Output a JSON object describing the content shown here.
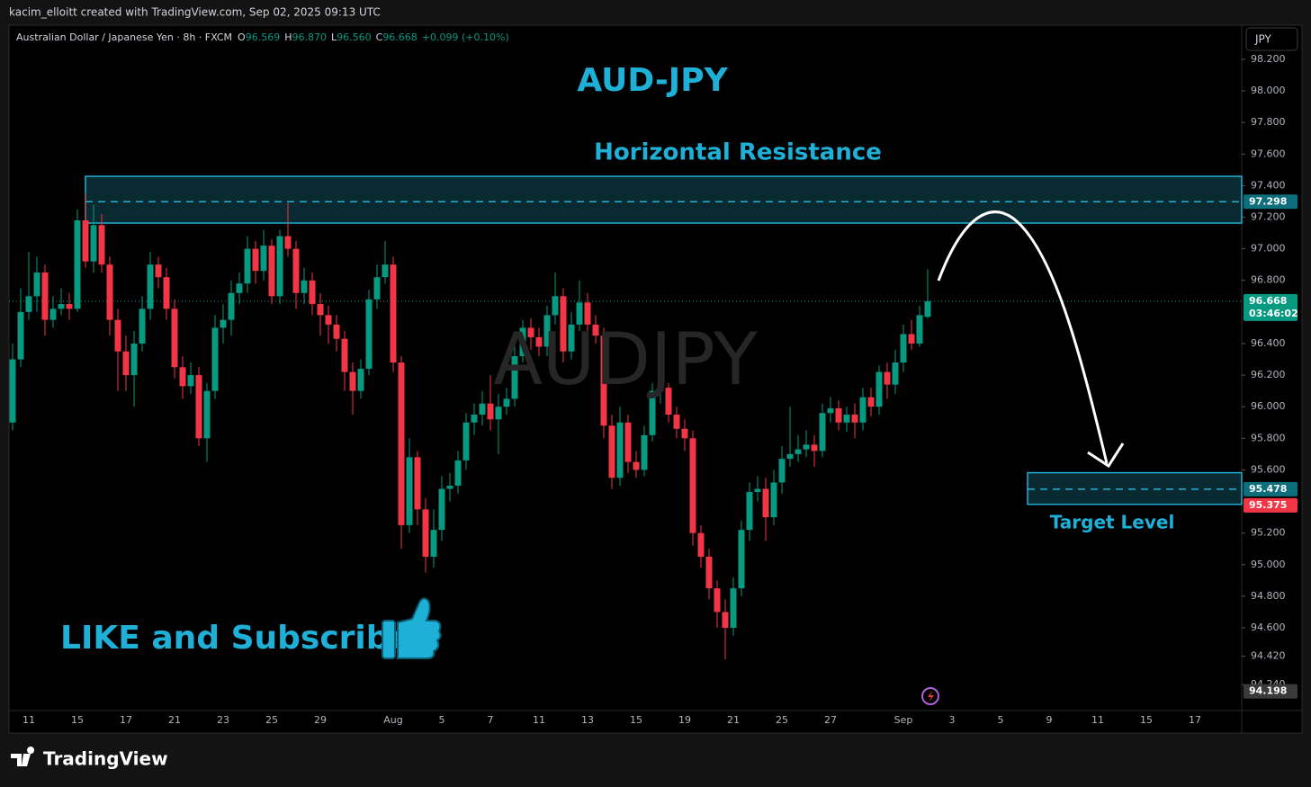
{
  "header": {
    "attribution": "kacim_elloitt created with TradingView.com, Sep 02, 2025 09:13 UTC",
    "logo": "TradingView"
  },
  "chart_data": {
    "type": "candlestick",
    "symbol": "Australian Dollar / Japanese Yen · 8h · FXCM",
    "ohlc_readout": {
      "o_label": "O",
      "o": "96.569",
      "h_label": "H",
      "h": "96.870",
      "l_label": "L",
      "l": "96.560",
      "c_label": "C",
      "c": "96.668",
      "change": "+0.099 (+0.10%)"
    },
    "currency": "JPY",
    "title": "AUD-JPY",
    "watermark": "AUDJPY",
    "annotations": {
      "resistance": "Horizontal Resistance",
      "target": "Target Level",
      "cta": "LIKE and Subscribe"
    },
    "categories": [
      null,
      null,
      "11",
      null,
      null,
      null,
      null,
      null,
      "15",
      null,
      null,
      null,
      null,
      null,
      "17",
      null,
      null,
      null,
      null,
      null,
      "21",
      null,
      null,
      null,
      null,
      null,
      "23",
      null,
      null,
      null,
      null,
      null,
      "25",
      null,
      null,
      null,
      null,
      null,
      "29",
      null,
      null,
      null,
      null,
      null,
      null,
      null,
      null,
      "Aug",
      null,
      null,
      null,
      null,
      null,
      "5",
      null,
      null,
      null,
      null,
      null,
      "7",
      null,
      null,
      null,
      null,
      null,
      "11",
      null,
      null,
      null,
      null,
      null,
      "13",
      null,
      null,
      null,
      null,
      null,
      "15",
      null,
      null,
      null,
      null,
      null,
      "19",
      null,
      null,
      null,
      null,
      null,
      "21",
      null,
      null,
      null,
      null,
      null,
      "25",
      null,
      null,
      null,
      null,
      null,
      "27",
      null,
      null,
      null,
      null,
      null,
      null,
      null,
      null,
      "Sep",
      null,
      null,
      null,
      null,
      null,
      "3",
      null,
      null,
      null,
      null,
      null,
      "5",
      null,
      null,
      null,
      null,
      null,
      "9",
      null,
      null,
      null,
      null,
      null,
      "11",
      null,
      null,
      null,
      null,
      null,
      "15",
      null,
      null,
      null,
      null,
      null,
      "17",
      null
    ],
    "open": [
      95.9,
      96.3,
      96.6,
      96.7,
      96.85,
      96.55,
      96.62,
      96.65,
      96.62,
      97.18,
      96.92,
      97.15,
      96.9,
      96.55,
      96.35,
      96.2,
      96.4,
      96.62,
      96.9,
      96.82,
      96.62,
      96.25,
      96.13,
      96.2,
      95.8,
      96.1,
      96.5,
      96.55,
      96.72,
      96.78,
      97.0,
      96.86,
      97.02,
      96.7,
      97.08,
      97.0,
      96.72,
      96.8,
      96.65,
      96.58,
      96.52,
      96.43,
      96.22,
      96.1,
      96.24,
      96.68,
      96.82,
      96.9,
      96.28,
      95.25,
      95.68,
      95.35,
      95.05,
      95.22,
      95.48,
      95.5,
      95.66,
      95.9,
      95.95,
      96.02,
      95.92,
      96.0,
      96.05,
      96.32,
      96.5,
      96.44,
      96.38,
      96.58,
      96.7,
      96.35,
      96.52,
      96.66,
      96.52,
      96.45,
      95.88,
      95.55,
      95.9,
      95.65,
      95.6,
      95.82,
      96.1,
      96.12,
      95.95,
      95.86,
      95.8,
      95.2,
      95.05,
      94.85,
      94.7,
      94.6,
      94.85,
      95.22,
      95.46,
      95.48,
      95.3,
      95.52,
      95.67,
      95.7,
      95.73,
      95.76,
      95.72,
      95.96,
      95.99,
      95.9,
      95.95,
      95.9,
      96.06,
      96.0,
      96.22,
      96.14,
      96.28,
      96.46,
      96.4,
      96.569,
      null,
      null,
      null,
      null,
      null,
      null,
      null,
      null,
      null,
      null,
      null,
      null,
      null,
      null,
      null,
      null,
      null,
      null,
      null,
      null,
      null,
      null,
      null,
      null,
      null,
      null,
      null,
      null,
      null,
      null,
      null,
      null,
      null,
      null
    ],
    "high": [
      96.4,
      96.75,
      96.98,
      96.95,
      96.9,
      96.7,
      96.75,
      96.72,
      97.25,
      97.35,
      97.28,
      97.22,
      96.95,
      96.62,
      96.45,
      96.48,
      96.7,
      96.98,
      96.95,
      96.88,
      96.68,
      96.32,
      96.28,
      96.25,
      96.15,
      96.58,
      96.65,
      96.8,
      96.85,
      97.08,
      97.05,
      97.12,
      97.06,
      97.12,
      97.29,
      97.05,
      96.88,
      96.85,
      96.72,
      96.64,
      96.58,
      96.48,
      96.28,
      96.3,
      96.74,
      96.9,
      97.05,
      96.95,
      96.32,
      95.8,
      95.72,
      95.42,
      95.35,
      95.56,
      95.58,
      95.72,
      95.96,
      96.02,
      96.1,
      96.2,
      96.08,
      96.12,
      96.4,
      96.55,
      96.56,
      96.5,
      96.64,
      96.85,
      96.75,
      96.6,
      96.8,
      96.72,
      96.58,
      96.5,
      95.95,
      96.0,
      95.95,
      95.72,
      95.88,
      96.15,
      96.18,
      96.15,
      96.0,
      95.92,
      95.85,
      95.25,
      95.1,
      94.9,
      94.78,
      94.92,
      95.28,
      95.52,
      95.56,
      95.55,
      95.6,
      95.75,
      96.0,
      95.82,
      95.85,
      95.82,
      96.02,
      96.06,
      96.04,
      96.0,
      96.02,
      96.12,
      96.12,
      96.26,
      96.28,
      96.36,
      96.52,
      96.55,
      96.64,
      96.87,
      null,
      null,
      null,
      null,
      null,
      null,
      null,
      null,
      null,
      null,
      null,
      null,
      null,
      null,
      null,
      null,
      null,
      null,
      null,
      null,
      null,
      null,
      null,
      null,
      null,
      null,
      null,
      null,
      null,
      null,
      null,
      null,
      null,
      null
    ],
    "low": [
      95.85,
      96.25,
      96.55,
      96.6,
      96.45,
      96.5,
      96.58,
      96.55,
      96.6,
      96.88,
      96.85,
      96.85,
      96.45,
      96.1,
      96.1,
      96.0,
      96.35,
      96.55,
      96.75,
      96.55,
      96.18,
      96.05,
      96.08,
      95.75,
      95.65,
      96.05,
      96.4,
      96.45,
      96.65,
      96.72,
      96.78,
      96.8,
      96.65,
      96.65,
      96.95,
      96.62,
      96.65,
      96.58,
      96.45,
      96.4,
      96.35,
      96.1,
      95.95,
      96.05,
      96.2,
      96.62,
      96.78,
      96.22,
      95.1,
      95.2,
      95.25,
      94.95,
      94.98,
      95.15,
      95.4,
      95.45,
      95.6,
      95.82,
      95.88,
      95.85,
      95.7,
      95.95,
      96.0,
      96.28,
      96.36,
      96.32,
      96.32,
      96.52,
      96.28,
      96.3,
      96.48,
      96.45,
      96.4,
      95.8,
      95.48,
      95.5,
      95.58,
      95.55,
      95.56,
      95.78,
      96.02,
      95.9,
      95.8,
      95.72,
      95.12,
      94.98,
      94.78,
      94.6,
      94.4,
      94.55,
      94.8,
      95.15,
      95.4,
      95.15,
      95.25,
      95.45,
      95.62,
      95.65,
      95.68,
      95.62,
      95.68,
      95.9,
      95.85,
      95.84,
      95.8,
      95.85,
      95.94,
      95.95,
      96.05,
      96.08,
      96.22,
      96.36,
      96.38,
      96.56,
      null,
      null,
      null,
      null,
      null,
      null,
      null,
      null,
      null,
      null,
      null,
      null,
      null,
      null,
      null,
      null,
      null,
      null,
      null,
      null,
      null,
      null,
      null,
      null,
      null,
      null,
      null,
      null,
      null,
      null,
      null,
      null,
      null,
      null
    ],
    "close": [
      96.3,
      96.6,
      96.7,
      96.85,
      96.55,
      96.62,
      96.65,
      96.62,
      97.18,
      96.92,
      97.15,
      96.9,
      96.55,
      96.35,
      96.2,
      96.4,
      96.62,
      96.9,
      96.82,
      96.62,
      96.25,
      96.13,
      96.2,
      95.8,
      96.1,
      96.5,
      96.55,
      96.72,
      96.78,
      97.0,
      96.86,
      97.02,
      96.7,
      97.08,
      97.0,
      96.72,
      96.8,
      96.65,
      96.58,
      96.52,
      96.43,
      96.22,
      96.1,
      96.24,
      96.68,
      96.82,
      96.9,
      96.28,
      95.25,
      95.68,
      95.35,
      95.05,
      95.22,
      95.48,
      95.5,
      95.66,
      95.9,
      95.95,
      96.02,
      95.92,
      96.0,
      96.05,
      96.32,
      96.5,
      96.44,
      96.38,
      96.58,
      96.7,
      96.35,
      96.52,
      96.66,
      96.52,
      96.45,
      95.88,
      95.55,
      95.9,
      95.65,
      95.6,
      95.82,
      96.1,
      96.12,
      95.95,
      95.86,
      95.8,
      95.2,
      95.05,
      94.85,
      94.7,
      94.6,
      94.85,
      95.22,
      95.46,
      95.48,
      95.3,
      95.52,
      95.67,
      95.7,
      95.73,
      95.76,
      95.72,
      95.96,
      95.99,
      95.9,
      95.95,
      95.9,
      96.06,
      96.0,
      96.22,
      96.14,
      96.28,
      96.46,
      96.4,
      96.58,
      96.668,
      null,
      null,
      null,
      null,
      null,
      null,
      null,
      null,
      null,
      null,
      null,
      null,
      null,
      null,
      null,
      null,
      null,
      null,
      null,
      null,
      null,
      null,
      null,
      null,
      null,
      null,
      null,
      null,
      null,
      null,
      null,
      null,
      null,
      null
    ],
    "up_color": "#089981",
    "down_color": "#f23645",
    "ylim": [
      94.076,
      98.416
    ],
    "yticks": [
      {
        "value": 98.2,
        "label": "98.200"
      },
      {
        "value": 98.0,
        "label": "98.000"
      },
      {
        "value": 97.8,
        "label": "97.800"
      },
      {
        "value": 97.6,
        "label": "97.600"
      },
      {
        "value": 97.4,
        "label": "97.400"
      },
      {
        "value": 97.2,
        "label": "97.200"
      },
      {
        "value": 97.0,
        "label": "97.000"
      },
      {
        "value": 96.8,
        "label": "96.800"
      },
      {
        "value": 96.4,
        "label": "96.400"
      },
      {
        "value": 96.2,
        "label": "96.200"
      },
      {
        "value": 96.0,
        "label": "96.000"
      },
      {
        "value": 95.8,
        "label": "95.800"
      },
      {
        "value": 95.6,
        "label": "95.600"
      },
      {
        "value": 95.2,
        "label": "95.200"
      },
      {
        "value": 95.0,
        "label": "95.000"
      },
      {
        "value": 94.8,
        "label": "94.800"
      },
      {
        "value": 94.6,
        "label": "94.600"
      },
      {
        "value": 94.42,
        "label": "94.420"
      },
      {
        "value": 94.24,
        "label": "94.240"
      }
    ],
    "zones": [
      {
        "top": 97.459,
        "bottom": 97.163,
        "color": "#0b3c44"
      },
      {
        "top": 95.582,
        "bottom": 95.382,
        "color": "#0b3c44"
      }
    ],
    "price_labels": [
      {
        "value": 97.298,
        "label": "97.298",
        "color": "#0e6f7c"
      },
      {
        "value": 96.668,
        "label": "96.668",
        "sublabel": "03:46:02",
        "color": "#089981"
      },
      {
        "value": 95.478,
        "label": "95.478",
        "color": "#0e6f7c"
      },
      {
        "value": 95.375,
        "label": "95.375",
        "color": "#f23645"
      },
      {
        "value": 94.198,
        "label": "94.198",
        "color": "#3a3a3a"
      }
    ]
  }
}
